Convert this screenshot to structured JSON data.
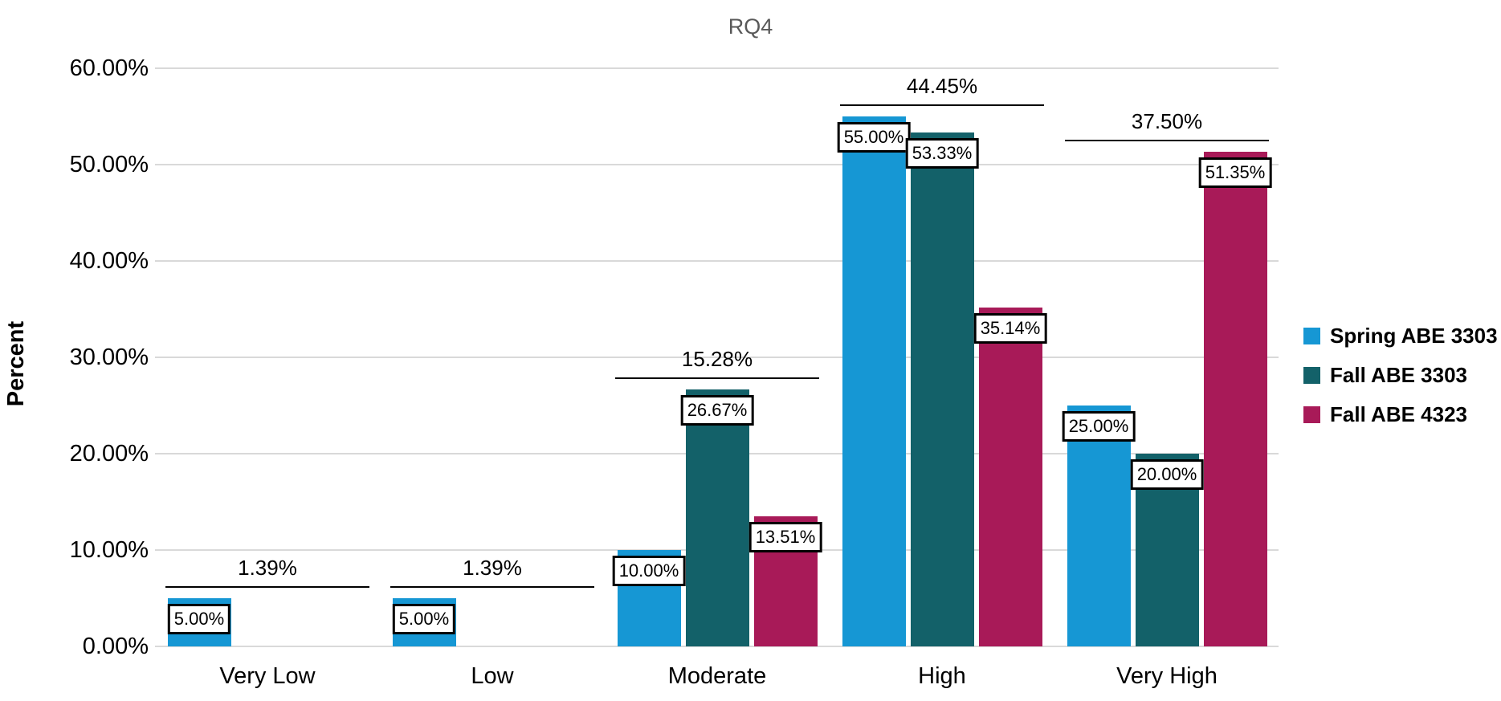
{
  "chart_data": {
    "type": "bar",
    "title": "RQ4",
    "ylabel": "Percent",
    "categories": [
      "Very Low",
      "Low",
      "Moderate",
      "High",
      "Very High"
    ],
    "series": [
      {
        "name": "Spring ABE 3303",
        "color": "#1697D4",
        "values": [
          5.0,
          5.0,
          10.0,
          55.0,
          25.0
        ]
      },
      {
        "name": "Fall ABE 3303",
        "color": "#136169",
        "values": [
          0,
          0,
          26.67,
          53.33,
          20.0
        ]
      },
      {
        "name": "Fall ABE 4323",
        "color": "#A81A58",
        "values": [
          0,
          0,
          13.51,
          35.14,
          51.35
        ]
      }
    ],
    "bar_value_labels": [
      [
        "5.00%",
        "5.00%",
        "10.00%",
        "55.00%",
        "25.00%"
      ],
      [
        "",
        "",
        "26.67%",
        "53.33%",
        "20.00%"
      ],
      [
        "",
        "",
        "13.51%",
        "35.14%",
        "51.35%"
      ]
    ],
    "group_average_lines": {
      "values": [
        1.39,
        1.39,
        15.28,
        44.45,
        37.5
      ],
      "labels": [
        "1.39%",
        "1.39%",
        "15.28%",
        "44.45%",
        "37.50%"
      ]
    },
    "y_ticks": [
      "0.00%",
      "10.00%",
      "20.00%",
      "30.00%",
      "40.00%",
      "50.00%",
      "60.00%"
    ],
    "ylim": [
      0,
      60
    ],
    "grid": true,
    "legend_position": "right",
    "colors": {
      "gridline": "#D9D9D9",
      "title_text": "#595959",
      "axis_text": "#000000"
    }
  }
}
